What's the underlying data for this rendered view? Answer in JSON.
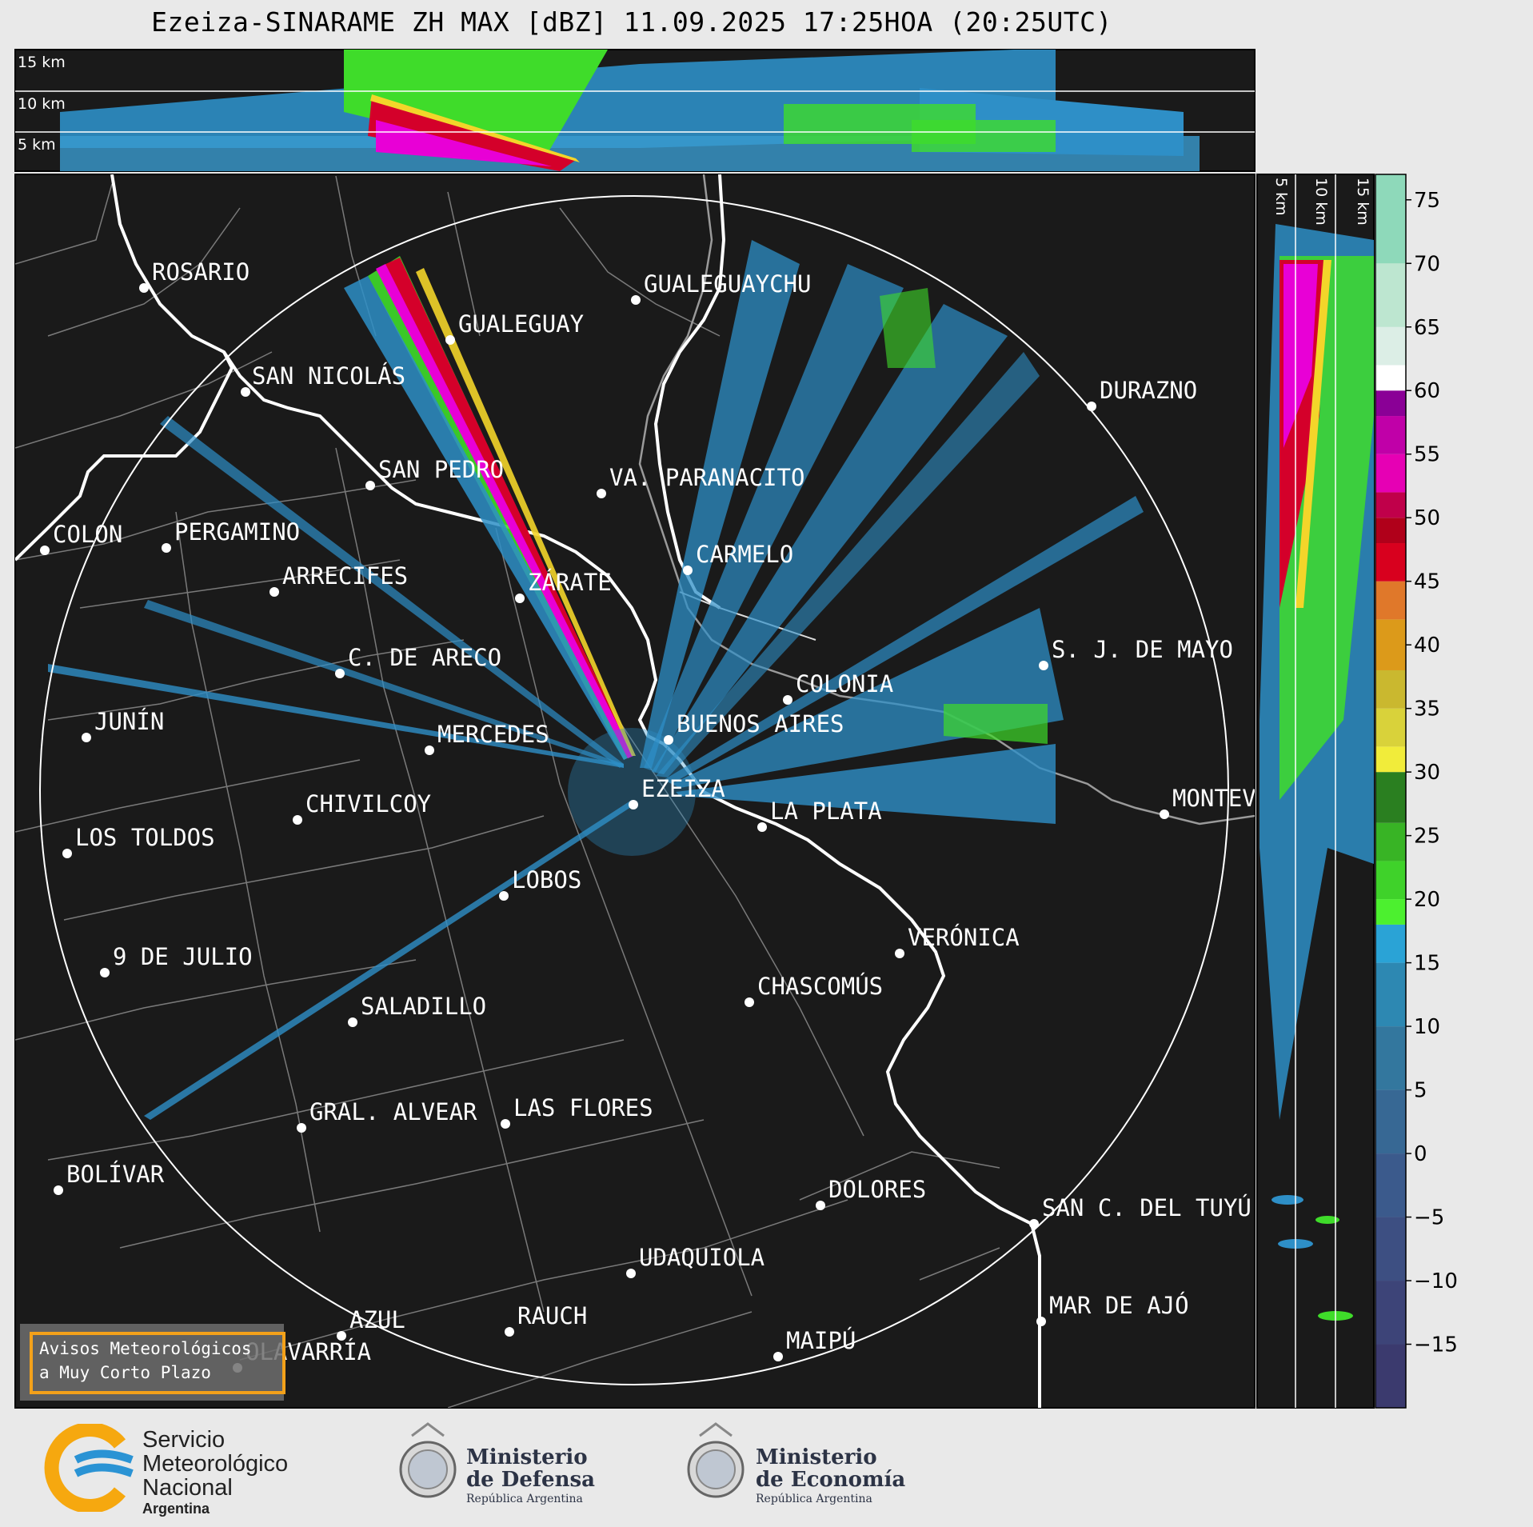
{
  "title": "Ezeiza-SINARAME ZH MAX [dBZ] 11.09.2025 17:25HOA (20:25UTC)",
  "top_panel": {
    "height_labels": [
      "15 km",
      "10 km",
      "5 km"
    ]
  },
  "side_panel": {
    "height_labels": [
      "5 km",
      "10 km",
      "15 km"
    ]
  },
  "radar_center": "EZEIZA",
  "cities": [
    {
      "name": "ROSARIO"
    },
    {
      "name": "GUALEGUAYCHU"
    },
    {
      "name": "GUALEGUAY"
    },
    {
      "name": "SAN NICOLÁS"
    },
    {
      "name": "DURAZNO"
    },
    {
      "name": "SAN PEDRO"
    },
    {
      "name": "VA. PARANACITO"
    },
    {
      "name": "COLON"
    },
    {
      "name": "PERGAMINO"
    },
    {
      "name": "CARMELO"
    },
    {
      "name": "ARRECIFES"
    },
    {
      "name": "ZÁRATE"
    },
    {
      "name": "S. J. DE MAYO"
    },
    {
      "name": "C. DE ARECO"
    },
    {
      "name": "COLONIA"
    },
    {
      "name": "JUNÍN"
    },
    {
      "name": "BUENOS AIRES"
    },
    {
      "name": "MERCEDES"
    },
    {
      "name": "EZEIZA"
    },
    {
      "name": "MONTEVIDEO"
    },
    {
      "name": "CHIVILCOY"
    },
    {
      "name": "LA PLATA"
    },
    {
      "name": "LOS TOLDOS"
    },
    {
      "name": "LOBOS"
    },
    {
      "name": "VERÓNICA"
    },
    {
      "name": "9 DE JULIO"
    },
    {
      "name": "CHASCOMÚS"
    },
    {
      "name": "SALADILLO"
    },
    {
      "name": "GRAL. ALVEAR"
    },
    {
      "name": "LAS FLORES"
    },
    {
      "name": "BOLÍVAR"
    },
    {
      "name": "DOLORES"
    },
    {
      "name": "SAN C. DEL TUYÚ"
    },
    {
      "name": "UDAQUIOLA"
    },
    {
      "name": "MAR DE AJÓ"
    },
    {
      "name": "AZUL"
    },
    {
      "name": "RAUCH"
    },
    {
      "name": "MAIPÚ"
    },
    {
      "name": "OLAVARRÍA"
    }
  ],
  "colorbar": {
    "ticks": [
      "75",
      "70",
      "65",
      "60",
      "55",
      "50",
      "45",
      "40",
      "35",
      "30",
      "25",
      "20",
      "15",
      "10",
      "5",
      "0",
      "−5",
      "−10",
      "−15"
    ],
    "range": [
      -20,
      77
    ]
  },
  "warning_box": {
    "line1": "Avisos Meteorológicos",
    "line2": "a Muy Corto Plazo"
  },
  "logos": {
    "smn": {
      "line1": "Servicio",
      "line2": "Meteorológico",
      "line3": "Nacional",
      "line4": "Argentina"
    },
    "defensa": {
      "line1": "Ministerio",
      "line2": "de Defensa",
      "line3": "República Argentina"
    },
    "economia": {
      "line1": "Ministerio",
      "line2": "de Economía",
      "line3": "República Argentina"
    }
  },
  "colors": {
    "map_bg": "#1a1a1a",
    "coast": "#ffffff",
    "echo_weak": "#2e8fc7",
    "echo_green": "#3fdc2a",
    "echo_red": "#d4002a",
    "echo_magenta": "#e800d6"
  }
}
